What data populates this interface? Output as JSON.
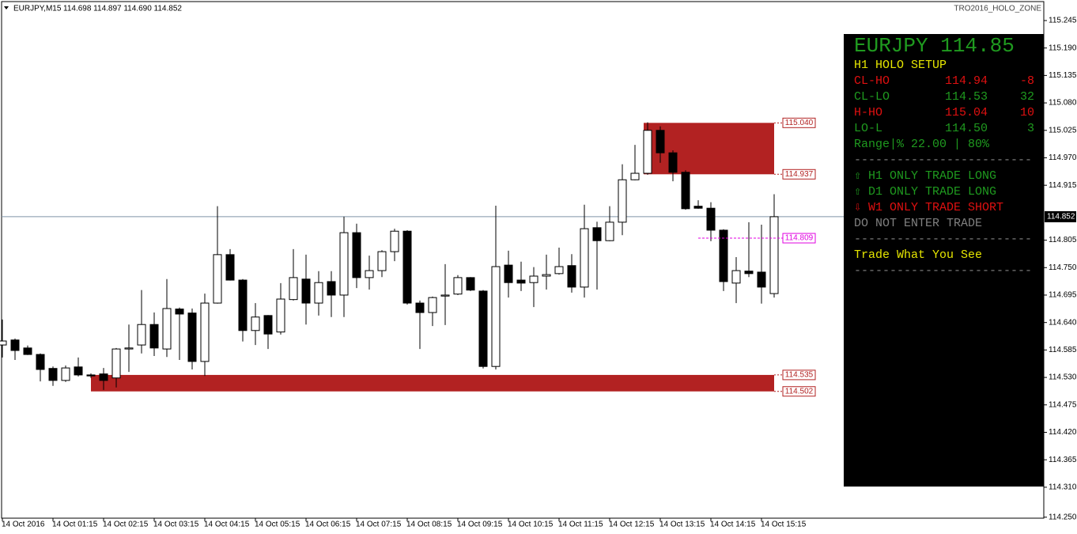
{
  "header": {
    "symbol": "EURJPY,M15",
    "ohlc": "114.698 114.897 114.690 114.852",
    "indicator": "TRO2016_HOLO_ZONE"
  },
  "chart_data": {
    "type": "candlestick",
    "categories": [
      "14 Oct 2016",
      null,
      null,
      null,
      "14 Oct 01:15",
      null,
      null,
      null,
      "14 Oct 02:15",
      null,
      null,
      null,
      "14 Oct 03:15",
      null,
      null,
      null,
      "14 Oct 04:15",
      null,
      null,
      null,
      "14 Oct 05:15",
      null,
      null,
      null,
      "14 Oct 06:15",
      null,
      null,
      null,
      "14 Oct 07:15",
      null,
      null,
      null,
      "14 Oct 08:15",
      null,
      null,
      null,
      "14 Oct 09:15",
      null,
      null,
      null,
      "14 Oct 10:15",
      null,
      null,
      null,
      "14 Oct 11:15",
      null,
      null,
      null,
      "14 Oct 12:15",
      null,
      null,
      null,
      "14 Oct 13:15",
      null,
      null,
      null,
      "14 Oct 14:15",
      null,
      null,
      null,
      "14 Oct 15:15",
      null
    ],
    "open": [
      114.595,
      114.605,
      114.589,
      114.576,
      114.548,
      114.524,
      114.551,
      114.535,
      114.537,
      114.529,
      114.587,
      114.595,
      114.636,
      114.587,
      114.667,
      114.659,
      114.562,
      114.679,
      114.776,
      114.725,
      114.624,
      114.654,
      114.621,
      114.686,
      114.727,
      114.679,
      114.722,
      114.695,
      114.82,
      114.73,
      114.744,
      114.782,
      114.823,
      114.679,
      114.66,
      114.693,
      114.697,
      114.73,
      114.703,
      114.552,
      114.755,
      114.725,
      114.72,
      114.733,
      114.738,
      114.754,
      114.711,
      114.83,
      114.804,
      114.841,
      114.926,
      114.939,
      115.025,
      114.98,
      114.941,
      114.873,
      114.869,
      114.825,
      114.719,
      114.743,
      114.741,
      114.698
    ],
    "high": [
      114.646,
      114.608,
      114.594,
      114.578,
      114.552,
      114.554,
      114.57,
      114.538,
      114.549,
      114.589,
      114.636,
      114.705,
      114.66,
      114.727,
      114.67,
      114.668,
      114.698,
      114.873,
      114.787,
      114.727,
      114.679,
      114.655,
      114.719,
      114.787,
      114.776,
      114.743,
      114.743,
      114.852,
      114.838,
      114.774,
      114.785,
      114.828,
      114.825,
      114.684,
      114.692,
      114.757,
      114.735,
      114.731,
      114.705,
      114.874,
      114.784,
      114.762,
      114.751,
      114.776,
      114.79,
      114.777,
      114.876,
      114.842,
      114.873,
      114.957,
      114.996,
      115.041,
      115.033,
      114.985,
      114.945,
      114.885,
      114.881,
      114.827,
      114.771,
      114.841,
      114.836,
      114.897
    ],
    "low": [
      114.57,
      114.565,
      114.575,
      114.522,
      114.513,
      114.521,
      114.532,
      114.529,
      114.505,
      114.51,
      114.541,
      114.578,
      114.573,
      114.571,
      114.565,
      114.546,
      114.533,
      114.678,
      114.724,
      114.602,
      114.595,
      114.587,
      114.616,
      114.684,
      114.636,
      114.654,
      114.651,
      114.651,
      114.709,
      114.706,
      114.731,
      114.763,
      114.676,
      114.587,
      114.633,
      114.635,
      114.695,
      114.703,
      114.548,
      114.546,
      114.69,
      114.703,
      114.671,
      114.706,
      114.736,
      114.7,
      114.69,
      114.706,
      114.803,
      114.815,
      114.925,
      114.936,
      114.96,
      114.923,
      114.866,
      114.868,
      114.803,
      114.703,
      114.679,
      114.731,
      114.678,
      114.69
    ],
    "close": [
      114.603,
      114.584,
      114.576,
      114.546,
      114.524,
      114.549,
      114.535,
      114.533,
      114.524,
      114.587,
      114.589,
      114.636,
      114.589,
      114.668,
      114.657,
      114.562,
      114.679,
      114.776,
      114.725,
      114.624,
      114.651,
      114.617,
      114.687,
      114.73,
      114.679,
      114.72,
      114.695,
      114.82,
      114.73,
      114.744,
      114.782,
      114.823,
      114.679,
      114.66,
      114.69,
      114.695,
      114.73,
      114.705,
      114.552,
      114.752,
      114.72,
      114.719,
      114.733,
      114.736,
      114.752,
      114.711,
      114.828,
      114.804,
      114.841,
      114.926,
      114.939,
      115.025,
      114.98,
      114.941,
      114.868,
      114.869,
      114.825,
      114.722,
      114.744,
      114.738,
      114.711,
      114.852
    ],
    "up_color": "#ffffff",
    "down_color": "#000000",
    "wick_color": "#000000",
    "ylim": [
      114.248,
      115.283
    ],
    "yticks": [
      115.245,
      {
        "value": 115.19,
        "label": "115.190"
      },
      115.135,
      {
        "value": 115.08,
        "label": "115.080"
      },
      115.025,
      {
        "value": 114.97,
        "label": "114.970"
      },
      114.915,
      114.805,
      {
        "value": 114.75,
        "label": "114.750"
      },
      114.695,
      {
        "value": 114.64,
        "label": "114.640"
      },
      114.585,
      {
        "value": 114.53,
        "label": "114.530"
      },
      114.475,
      {
        "value": 114.42,
        "label": "114.420"
      },
      114.365,
      {
        "value": 114.31,
        "label": "114.310"
      },
      {
        "value": 114.25,
        "label": "114.250"
      }
    ],
    "grid": false,
    "last_price": 114.852,
    "last_price_color": "#7f93a8",
    "marker_line": 114.809,
    "marker_color": "#e000e0",
    "zones": [
      {
        "top": {
          "value": 115.04,
          "label": "115.040"
        },
        "bottom": {
          "value": 114.937,
          "label": "114.937"
        },
        "color": "#b22222"
      },
      {
        "top": {
          "value": 114.535,
          "label": "114.535"
        },
        "bottom": {
          "value": 114.502,
          "label": "114.502"
        },
        "color": "#b22222"
      }
    ]
  },
  "panel": {
    "title": "EURJPY 114.85",
    "title_color": "#1f9a1f",
    "setup": "H1 HOLO SETUP",
    "setup_color": "#e6e600",
    "rows": [
      {
        "label": "CL-HO",
        "value": "114.94",
        "diff": "-8",
        "color": "#e01010"
      },
      {
        "label": "CL-LO",
        "value": "114.53",
        "diff": "32",
        "color": "#1f9a1f"
      },
      {
        "label": "H-HO",
        "value": "115.04",
        "diff": "10",
        "color": "#e01010"
      },
      {
        "label": "LO-L",
        "value": "114.50",
        "diff": "3",
        "color": "#1f9a1f"
      }
    ],
    "range": "Range|% 22.00 | 80%",
    "range_color": "#1f9a1f",
    "separator": "-------------------------",
    "separator_color": "#808080",
    "signals": [
      {
        "text": "⇧ H1 ONLY TRADE LONG",
        "color": "#1f9a1f"
      },
      {
        "text": "⇧ D1 ONLY TRADE LONG",
        "color": "#1f9a1f"
      },
      {
        "text": "⇩ W1 ONLY TRADE SHORT",
        "color": "#e01010"
      }
    ],
    "warning": "DO NOT ENTER TRADE",
    "warning_color": "#808080",
    "motto": "Trade What You See",
    "motto_color": "#e6e600"
  }
}
